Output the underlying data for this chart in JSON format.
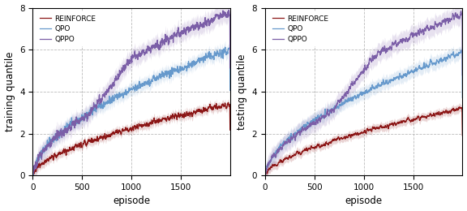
{
  "n_episodes": 2000,
  "seed": 42,
  "colors": {
    "REINFORCE": "#8B1515",
    "QPO": "#6699CC",
    "QPPO": "#7B5EA7"
  },
  "alpha_fill": 0.18,
  "ylim": [
    0,
    8
  ],
  "xlim": [
    0,
    2000
  ],
  "yticks": [
    0,
    2,
    4,
    6,
    8
  ],
  "xticks": [
    0,
    500,
    1000,
    1500
  ],
  "xlabel": "episode",
  "ylabel_left": "training quantile",
  "ylabel_right": "testing quantile",
  "legend_labels": [
    "REINFORCE",
    "QPO",
    "QPPO"
  ],
  "grid_color": "#aaaaaa",
  "grid_linestyle": "--",
  "grid_alpha": 0.8,
  "bg_color": "#ffffff"
}
